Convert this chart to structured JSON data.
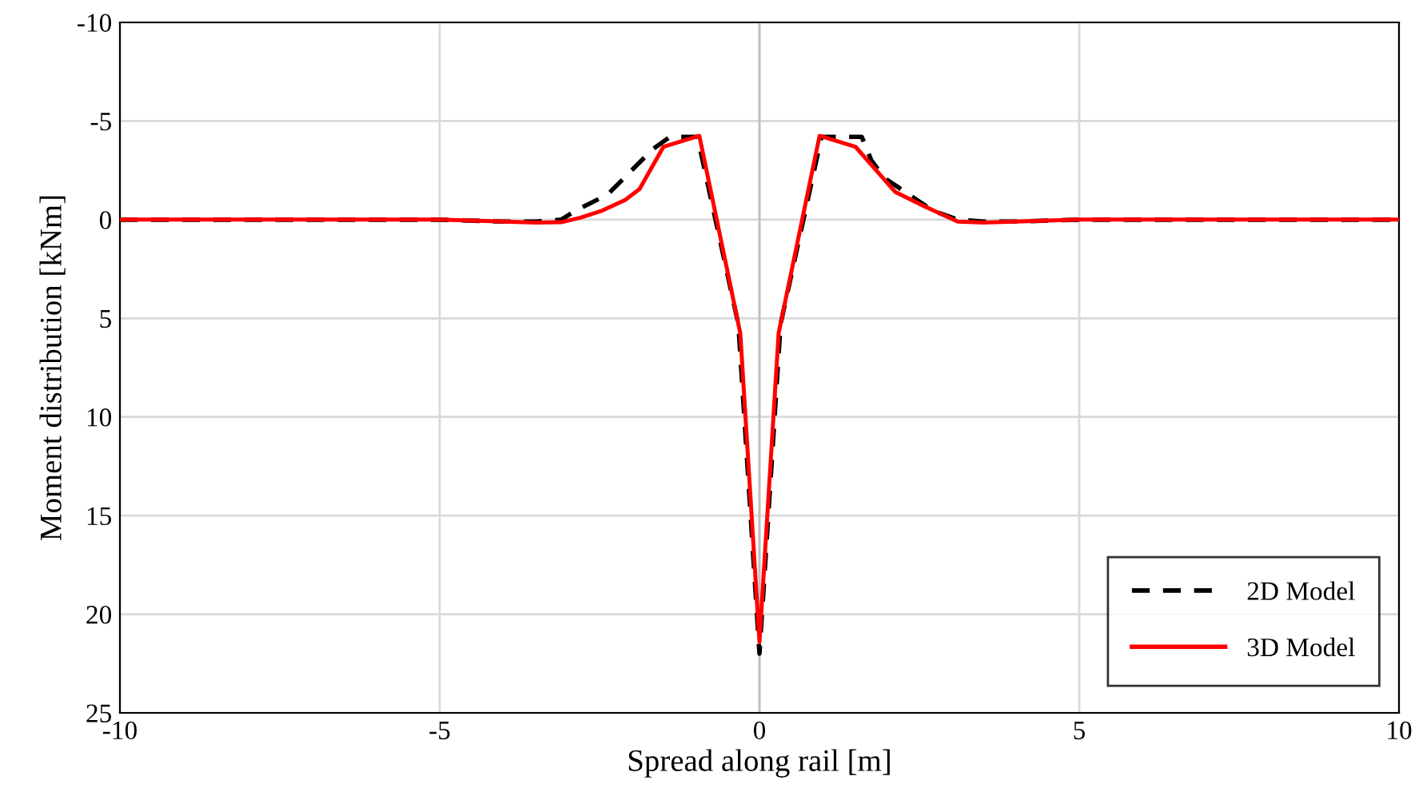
{
  "chart_data": {
    "type": "line",
    "xlabel": "Spread along rail [m]",
    "ylabel": "Moment distribution [kNm]",
    "xlim": [
      -10,
      10
    ],
    "xticks": [
      -10,
      -5,
      0,
      5,
      10
    ],
    "ylim": [
      25,
      -10
    ],
    "yticks": [
      -10,
      -5,
      0,
      5,
      10,
      15,
      20,
      25
    ],
    "grid": true,
    "legend": "bottom right",
    "marker": "none",
    "series": [
      {
        "name": "2D Model",
        "color": "#000000",
        "line_style": "dashed",
        "x": [
          -10,
          -7.5,
          -5,
          -4,
          -3.5,
          -3.1,
          -2.875,
          -2.375,
          -1.67,
          -1.4,
          -0.97,
          -0.33,
          0,
          0.33,
          0.97,
          1.6,
          1.75,
          1.96,
          2.71,
          3.1,
          3.5,
          4,
          5,
          7.5,
          10
        ],
        "values": [
          0,
          0,
          0,
          0.1,
          0.1,
          0,
          -0.46,
          -1.27,
          -3.57,
          -4.2,
          -4.2,
          5.3,
          22.0,
          5.3,
          -4.2,
          -4.2,
          -3.0,
          -2.1,
          -0.46,
          0,
          0.1,
          0.1,
          0,
          0,
          0
        ]
      },
      {
        "name": "3D Model",
        "color": "#ff0000",
        "line_style": "solid",
        "x": [
          -10,
          -7.5,
          -5,
          -4,
          -3.5,
          -3.1,
          -2.8,
          -2.46,
          -2.1,
          -1.875,
          -1.5,
          -0.94,
          -0.3,
          0,
          0.3,
          0.94,
          1.5,
          2.125,
          2.5,
          2.8,
          3.1,
          3.5,
          4,
          5,
          7.5,
          10
        ],
        "values": [
          0,
          0,
          0,
          0.1,
          0.15,
          0.13,
          -0.1,
          -0.46,
          -1.0,
          -1.55,
          -3.7,
          -4.25,
          5.75,
          21.4,
          5.75,
          -4.25,
          -3.7,
          -1.4,
          -0.8,
          -0.35,
          0.1,
          0.15,
          0.1,
          0,
          0,
          0
        ]
      }
    ]
  }
}
